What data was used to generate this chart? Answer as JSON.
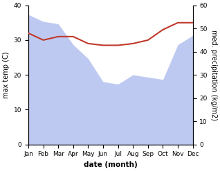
{
  "months": [
    "Jan",
    "Feb",
    "Mar",
    "Apr",
    "May",
    "Jun",
    "Jul",
    "Aug",
    "Sep",
    "Oct",
    "Nov",
    "Dec"
  ],
  "max_temp": [
    32,
    30,
    31,
    31,
    29,
    28.5,
    28.5,
    29,
    30,
    33,
    35,
    35
  ],
  "med_precip": [
    56,
    53,
    52,
    43,
    37,
    27,
    26,
    30,
    29,
    28,
    43,
    47
  ],
  "temp_color": "#c0392b",
  "precip_fill_color": "#bdc9f0",
  "temp_ylim": [
    0,
    40
  ],
  "precip_ylim": [
    0,
    60
  ],
  "xlabel": "date (month)",
  "ylabel_left": "max temp (C)",
  "ylabel_right": "med. precipitation (kg/m2)",
  "bg_color": "#ffffff",
  "label_fontsize": 7,
  "tick_fontsize": 6.5
}
